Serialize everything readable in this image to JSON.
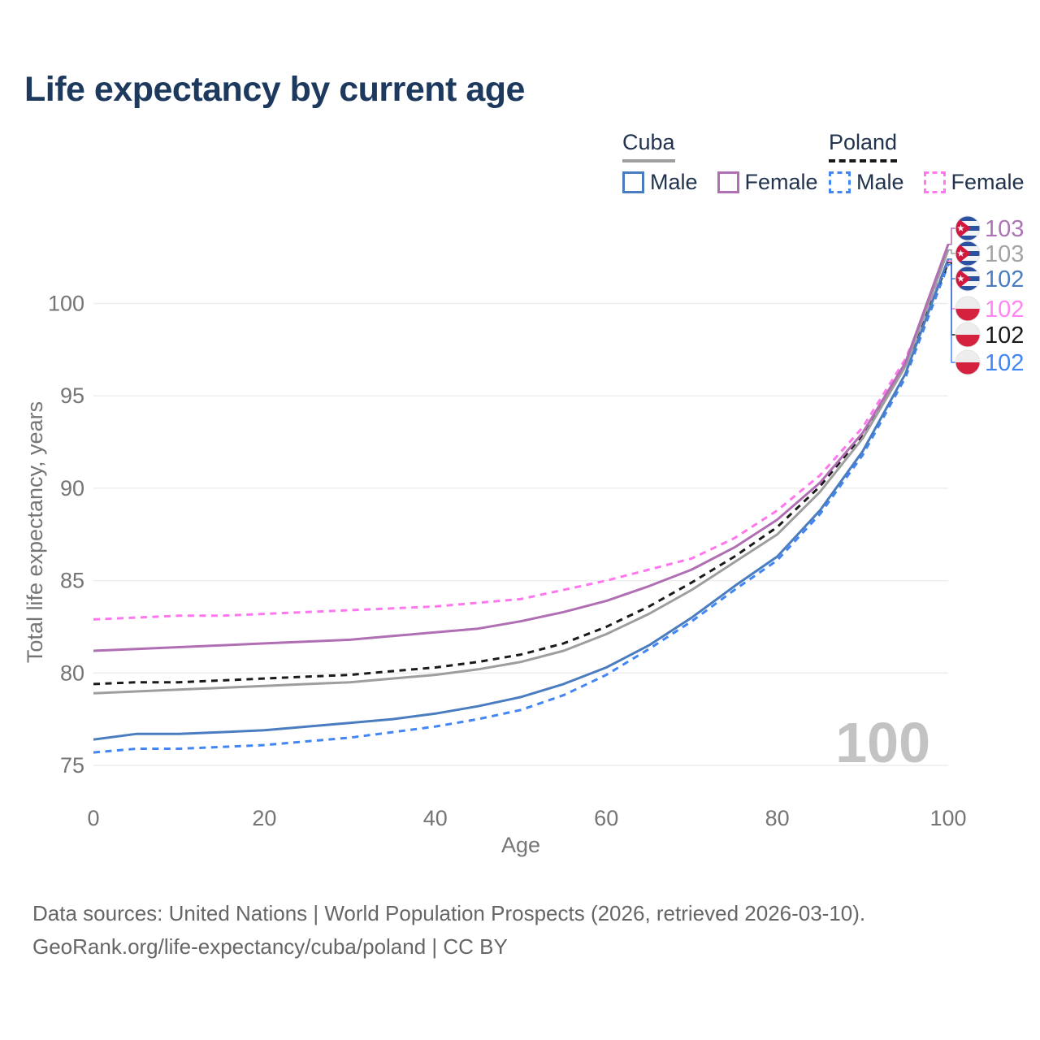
{
  "title": "Life expectancy by current age",
  "legend": {
    "groups": [
      {
        "label": "Cuba",
        "underline": "solid",
        "underline_color": "#9e9e9e",
        "items": [
          {
            "label": "Male",
            "color": "#4a7dbf",
            "dash": false
          },
          {
            "label": "Female",
            "color": "#b06fb3",
            "dash": false
          }
        ]
      },
      {
        "label": "Poland",
        "underline": "dashed",
        "underline_color": "#1a1a1a",
        "items": [
          {
            "label": "Male",
            "color": "#4285f4",
            "dash": true
          },
          {
            "label": "Female",
            "color": "#ff77ee",
            "dash": true
          }
        ]
      }
    ]
  },
  "chart_data": {
    "type": "line",
    "title": "Life expectancy by current age",
    "xlabel": "Age",
    "ylabel": "Total life expectancy, years",
    "watermark": "100",
    "grid": "horizontal",
    "legend_position": "top-right",
    "xlim": [
      0,
      100
    ],
    "ylim": [
      74.5,
      103.5
    ],
    "xticks": [
      0,
      20,
      40,
      60,
      80,
      100
    ],
    "yticks": [
      75,
      80,
      85,
      90,
      95,
      100
    ],
    "x": [
      0,
      5,
      10,
      15,
      20,
      25,
      30,
      35,
      40,
      45,
      50,
      55,
      60,
      65,
      70,
      75,
      80,
      85,
      90,
      95,
      100
    ],
    "series": [
      {
        "name": "Cuba Female",
        "country": "Cuba",
        "sex": "Female",
        "flag": "cuba",
        "color": "#b06fb3",
        "dash": false,
        "end_label": "103",
        "end_label_color": "#ad74b5",
        "values": [
          81.2,
          81.3,
          81.4,
          81.5,
          81.6,
          81.7,
          81.8,
          82.0,
          82.2,
          82.4,
          82.8,
          83.3,
          83.9,
          84.7,
          85.6,
          86.8,
          88.3,
          90.3,
          93.0,
          96.8,
          103.2
        ]
      },
      {
        "name": "Cuba Total",
        "country": "Cuba",
        "sex": "Both",
        "flag": "cuba",
        "color": "#9e9e9e",
        "dash": false,
        "end_label": "103",
        "end_label_color": "#a3a3a3",
        "values": [
          78.9,
          79.0,
          79.1,
          79.2,
          79.3,
          79.4,
          79.5,
          79.7,
          79.9,
          80.2,
          80.6,
          81.2,
          82.1,
          83.2,
          84.5,
          86.0,
          87.5,
          89.8,
          92.7,
          96.6,
          102.9
        ]
      },
      {
        "name": "Cuba Male",
        "country": "Cuba",
        "sex": "Male",
        "flag": "cuba",
        "color": "#4a7dbf",
        "dash": false,
        "end_label": "102",
        "end_label_color": "#4a7dbf",
        "values": [
          76.4,
          76.7,
          76.7,
          76.8,
          76.9,
          77.1,
          77.3,
          77.5,
          77.8,
          78.2,
          78.7,
          79.4,
          80.3,
          81.5,
          83.0,
          84.7,
          86.3,
          88.8,
          92.0,
          96.2,
          102.4
        ]
      },
      {
        "name": "Poland Female",
        "country": "Poland",
        "sex": "Female",
        "flag": "poland",
        "color": "#ff77ee",
        "dash": true,
        "end_label": "102",
        "end_label_color": "#ff85f0",
        "values": [
          82.9,
          83.0,
          83.1,
          83.1,
          83.2,
          83.3,
          83.4,
          83.5,
          83.6,
          83.8,
          84.0,
          84.5,
          85.0,
          85.6,
          86.2,
          87.3,
          88.8,
          90.7,
          93.3,
          97.0,
          102.3
        ]
      },
      {
        "name": "Poland Total",
        "country": "Poland",
        "sex": "Both",
        "flag": "poland",
        "color": "#1a1a1a",
        "dash": true,
        "end_label": "102",
        "end_label_color": "#1a1a1a",
        "values": [
          79.4,
          79.5,
          79.5,
          79.6,
          79.7,
          79.8,
          79.9,
          80.1,
          80.3,
          80.6,
          81.0,
          81.6,
          82.5,
          83.6,
          84.9,
          86.3,
          87.9,
          90.1,
          92.9,
          96.7,
          102.2
        ]
      },
      {
        "name": "Poland Male",
        "country": "Poland",
        "sex": "Male",
        "flag": "poland",
        "color": "#4285f4",
        "dash": true,
        "end_label": "102",
        "end_label_color": "#4285f4",
        "values": [
          75.7,
          75.9,
          75.9,
          76.0,
          76.1,
          76.3,
          76.5,
          76.8,
          77.1,
          77.5,
          78.0,
          78.8,
          79.9,
          81.3,
          82.8,
          84.5,
          86.1,
          88.6,
          91.8,
          96.0,
          102.1
        ]
      }
    ]
  },
  "footer": {
    "line1": "Data sources: United Nations | World Population Prospects (2026, retrieved 2026-03-10).",
    "line2": "GeoRank.org/life-expectancy/cuba/poland | CC BY"
  }
}
